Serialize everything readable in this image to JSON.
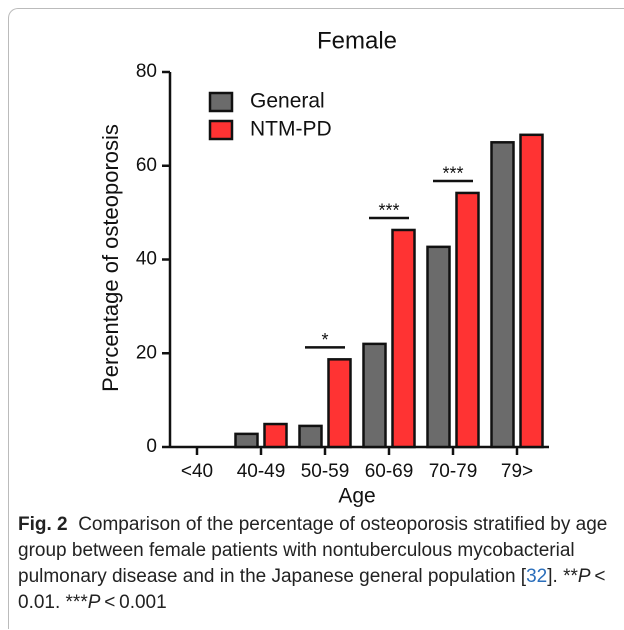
{
  "chart_data": {
    "type": "bar",
    "title": "Female",
    "x_label": "Age",
    "y_label": "Percentage of osteoporosis",
    "categories": [
      "<40",
      "40-49",
      "50-59",
      "60-69",
      "70-79",
      "79>"
    ],
    "series": [
      {
        "name": "General",
        "color": "#6b6b6b",
        "values": [
          0,
          2.8,
          4.5,
          22,
          42.7,
          65
        ]
      },
      {
        "name": "NTM-PD",
        "color": "#ff3333",
        "values": [
          0,
          4.9,
          18.7,
          46.3,
          54.2,
          66.6
        ]
      }
    ],
    "ylim": [
      0,
      80
    ],
    "yticks": [
      0,
      20,
      40,
      60,
      80
    ],
    "annotations": [
      {
        "text": "*",
        "category": 2
      },
      {
        "text": "***",
        "category": 3
      },
      {
        "text": "***",
        "category": 4
      }
    ],
    "legend": "upper left"
  },
  "caption": {
    "label": "Fig. 2",
    "parts": [
      "Comparison of the percentage of osteoporosis stratified by age group between female patients with nontuberculous mycobacterial pulmonary disease and in the Japanese general population [",
      "32",
      "]. **",
      "P",
      " < 0.01. ***",
      "P",
      " < 0.001"
    ]
  }
}
